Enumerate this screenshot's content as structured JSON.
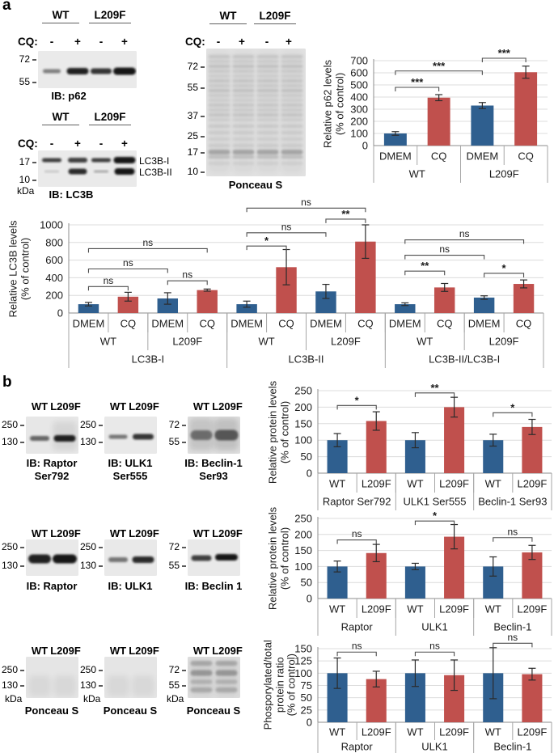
{
  "panels": {
    "a": "a",
    "b": "b"
  },
  "colors": {
    "bar_blue": "#2F5F8F",
    "bar_red": "#C0504D"
  },
  "blots": {
    "p62": {
      "group_labels": [
        "WT",
        "L209F"
      ],
      "cq_label": "CQ:",
      "cq_values": [
        "-",
        "+",
        "-",
        "+"
      ],
      "markers": [
        "72",
        "55"
      ],
      "caption": [
        "IB: p62"
      ]
    },
    "lc3b": {
      "group_labels": [
        "WT",
        "L209F"
      ],
      "cq_label": "CQ:",
      "cq_values": [
        "-",
        "+",
        "-",
        "+"
      ],
      "markers": [
        "17",
        "10"
      ],
      "kda_label": "kDa",
      "band_labels": [
        "LC3B-I",
        "LC3B-II"
      ],
      "caption": [
        "IB: LC3B"
      ]
    },
    "ponceau_a": {
      "group_labels": [
        "WT",
        "L209F"
      ],
      "cq_label": "CQ:",
      "cq_values": [
        "-",
        "+",
        "-",
        "+"
      ],
      "markers": [
        "72",
        "55",
        "37",
        "25",
        "17",
        "10"
      ],
      "caption": [
        "Ponceau S"
      ]
    },
    "raptor_p": {
      "group_labels": [
        "WT",
        "L209F"
      ],
      "markers": [
        "250",
        "130"
      ],
      "caption": [
        "IB: Raptor",
        "Ser792"
      ]
    },
    "ulk1_p": {
      "group_labels": [
        "WT",
        "L209F"
      ],
      "markers": [
        "250",
        "130"
      ],
      "caption": [
        "IB: ULK1",
        "Ser555"
      ]
    },
    "beclin_p": {
      "group_labels": [
        "WT",
        "L209F"
      ],
      "markers": [
        "72",
        "55"
      ],
      "caption": [
        "IB: Beclin-1",
        "Ser93"
      ]
    },
    "raptor_t": {
      "group_labels": [
        "WT",
        "L209F"
      ],
      "markers": [
        "250",
        "130"
      ],
      "caption": [
        "IB: Raptor"
      ]
    },
    "ulk1_t": {
      "group_labels": [
        "WT",
        "L209F"
      ],
      "markers": [
        "250",
        "130"
      ],
      "caption": [
        "IB: ULK1"
      ]
    },
    "beclin_t": {
      "group_labels": [
        "WT",
        "L209F"
      ],
      "markers": [
        "72",
        "55"
      ],
      "caption": [
        "IB: Beclin 1"
      ]
    },
    "ponceau_b1": {
      "group_labels": [
        "WT",
        "L209F"
      ],
      "markers": [
        "250",
        "130"
      ],
      "kda_label": "kDa",
      "caption": [
        "Ponceau S"
      ]
    },
    "ponceau_b2": {
      "group_labels": [
        "WT",
        "L209F"
      ],
      "markers": [
        "250",
        "130"
      ],
      "kda_label": "kDa",
      "caption": [
        "Ponceau S"
      ]
    },
    "ponceau_b3": {
      "group_labels": [
        "WT",
        "L209F"
      ],
      "markers": [
        "72",
        "55"
      ],
      "kda_label": "kDa",
      "caption": [
        "Ponceau S"
      ]
    }
  },
  "chart_data": [
    {
      "id": "p62_levels",
      "type": "bar",
      "ylabel": [
        "Relative p62 levels",
        "(% of control)"
      ],
      "ylim": [
        0,
        700
      ],
      "ytick": 100,
      "grid": true,
      "ytick_labels": [
        0,
        100,
        200,
        300,
        400,
        500,
        600,
        700
      ],
      "categories": [
        "DMEM",
        "CQ",
        "DMEM",
        "CQ"
      ],
      "group_rows": [
        {
          "span": 2,
          "labels": [
            "WT",
            "L209F"
          ]
        }
      ],
      "values": [
        100,
        395,
        330,
        605
      ],
      "errors": [
        15,
        25,
        25,
        50
      ],
      "bar_colors": [
        "blue",
        "red",
        "blue",
        "red"
      ],
      "brackets": [
        {
          "from": 0,
          "to": 1,
          "label": "***",
          "y": 480
        },
        {
          "from": 0,
          "to": 2,
          "label": "***",
          "y": 615
        },
        {
          "from": 2,
          "to": 3,
          "label": "***",
          "y": 720
        }
      ]
    },
    {
      "id": "lc3b_levels",
      "type": "bar",
      "ylabel": [
        "Relative LC3B levels",
        "(% of control)"
      ],
      "ylim": [
        0,
        1000
      ],
      "ytick": 200,
      "grid": true,
      "ytick_labels": [
        0,
        200,
        400,
        600,
        800,
        1000
      ],
      "categories": [
        "DMEM",
        "CQ",
        "DMEM",
        "CQ",
        "DMEM",
        "CQ",
        "DMEM",
        "CQ",
        "DMEM",
        "CQ",
        "DMEM",
        "CQ"
      ],
      "group_rows": [
        {
          "span": 2,
          "labels": [
            "WT",
            "L209F",
            "WT",
            "L209F",
            "WT",
            "L209F"
          ]
        },
        {
          "span": 4,
          "labels": [
            "LC3B-I",
            "LC3B-II",
            "LC3B-II/LC3B-I"
          ]
        }
      ],
      "values": [
        100,
        185,
        165,
        260,
        100,
        520,
        245,
        810,
        100,
        290,
        175,
        330
      ],
      "errors": [
        20,
        50,
        65,
        12,
        35,
        200,
        80,
        190,
        15,
        45,
        20,
        45
      ],
      "bar_colors": [
        "blue",
        "red",
        "blue",
        "red",
        "blue",
        "red",
        "blue",
        "red",
        "blue",
        "red",
        "blue",
        "red"
      ],
      "brackets": [
        {
          "from": 0,
          "to": 1,
          "label": "ns",
          "y": 300
        },
        {
          "from": 2,
          "to": 3,
          "label": "ns",
          "y": 365
        },
        {
          "from": 0,
          "to": 2,
          "label": "ns",
          "y": 500
        },
        {
          "from": 0,
          "to": 3,
          "label": "ns",
          "y": 730
        },
        {
          "from": 4,
          "to": 5,
          "label": "*",
          "y": 760
        },
        {
          "from": 4,
          "to": 6,
          "label": "ns",
          "y": 910
        },
        {
          "from": 6,
          "to": 7,
          "label": "**",
          "y": 1065
        },
        {
          "from": 4,
          "to": 7,
          "label": "ns",
          "y": 1190
        },
        {
          "from": 8,
          "to": 9,
          "label": "**",
          "y": 475
        },
        {
          "from": 10,
          "to": 11,
          "label": "*",
          "y": 450
        },
        {
          "from": 8,
          "to": 10,
          "label": "ns",
          "y": 655
        },
        {
          "from": 8,
          "to": 11,
          "label": "ns",
          "y": 830
        }
      ]
    },
    {
      "id": "phospho_protein_levels",
      "type": "bar",
      "ylabel": [
        "Relative protein levels",
        "(% of control)"
      ],
      "ylim": [
        0,
        250
      ],
      "ytick": 50,
      "grid": true,
      "ytick_labels": [
        0,
        50,
        100,
        150,
        200,
        250
      ],
      "categories": [
        "WT",
        "L209F",
        "WT",
        "L209F",
        "WT",
        "L209F"
      ],
      "group_rows": [
        {
          "span": 2,
          "labels": [
            "Raptor Ser792",
            "ULK1  Ser555",
            "Beclin-1 Ser93"
          ]
        }
      ],
      "values": [
        100,
        158,
        100,
        200,
        100,
        140
      ],
      "errors": [
        20,
        28,
        23,
        30,
        18,
        23
      ],
      "bar_colors": [
        "blue",
        "red",
        "blue",
        "red",
        "blue",
        "red"
      ],
      "brackets": [
        {
          "from": 0,
          "to": 1,
          "label": "*",
          "y": 205
        },
        {
          "from": 2,
          "to": 3,
          "label": "**",
          "y": 243
        },
        {
          "from": 4,
          "to": 5,
          "label": "*",
          "y": 183
        }
      ]
    },
    {
      "id": "total_protein_levels",
      "type": "bar",
      "ylabel": [
        "Relative protein levels",
        "(% of control)"
      ],
      "ylim": [
        0,
        250
      ],
      "ytick": 50,
      "grid": true,
      "ytick_labels": [
        0,
        50,
        100,
        150,
        200,
        250
      ],
      "categories": [
        "WT",
        "L209F",
        "WT",
        "L209F",
        "WT",
        "L209F"
      ],
      "group_rows": [
        {
          "span": 2,
          "labels": [
            "Raptor",
            "ULK1",
            "Beclin-1"
          ]
        }
      ],
      "values": [
        100,
        142,
        100,
        193,
        100,
        144
      ],
      "errors": [
        17,
        27,
        10,
        38,
        30,
        22
      ],
      "bar_colors": [
        "blue",
        "red",
        "blue",
        "red",
        "blue",
        "red"
      ],
      "brackets": [
        {
          "from": 0,
          "to": 1,
          "label": "ns",
          "y": 183
        },
        {
          "from": 2,
          "to": 3,
          "label": "*",
          "y": 242
        },
        {
          "from": 4,
          "to": 5,
          "label": "ns",
          "y": 190
        }
      ]
    },
    {
      "id": "phospho_total_ratio",
      "type": "bar",
      "ylabel": [
        "Phosporylated/total",
        "protein ratio",
        "(% of control)"
      ],
      "ylim": [
        0,
        150
      ],
      "ytick": 25,
      "grid": true,
      "ytick_labels": [
        0,
        25,
        50,
        75,
        100,
        125,
        150
      ],
      "categories": [
        "WT",
        "L209F",
        "WT",
        "L209F",
        "WT",
        "L209F"
      ],
      "group_rows": [
        {
          "span": 2,
          "labels": [
            "Raptor",
            "ULK1",
            "Beclin-1"
          ]
        }
      ],
      "values": [
        100,
        88,
        100,
        96,
        100,
        98
      ],
      "errors": [
        31,
        16,
        27,
        31,
        52,
        12
      ],
      "bar_colors": [
        "blue",
        "red",
        "blue",
        "red",
        "blue",
        "red"
      ],
      "brackets": [
        {
          "from": 0,
          "to": 1,
          "label": "ns",
          "y": 143
        },
        {
          "from": 2,
          "to": 3,
          "label": "ns",
          "y": 143
        },
        {
          "from": 4,
          "to": 5,
          "label": "ns",
          "y": 161
        }
      ]
    }
  ]
}
